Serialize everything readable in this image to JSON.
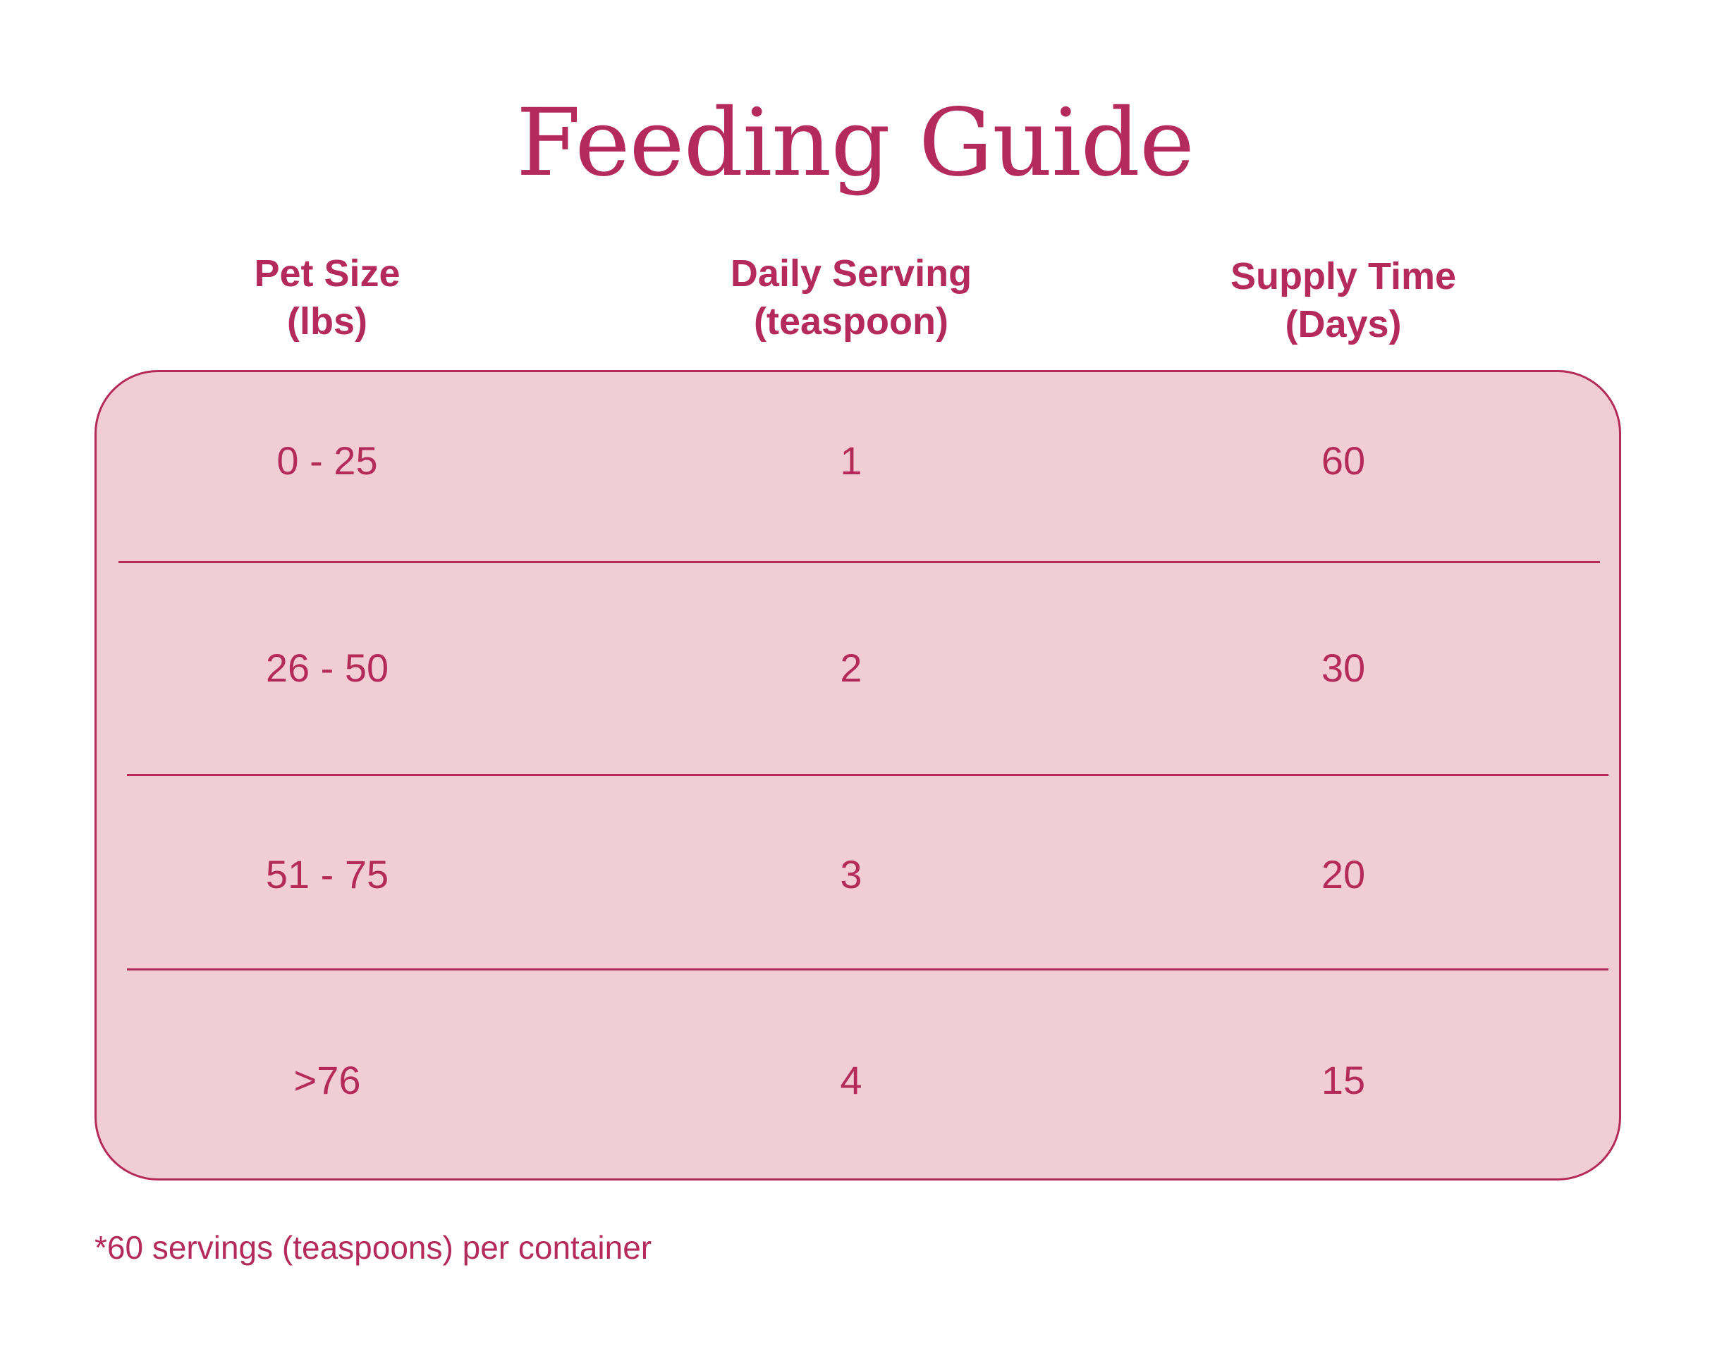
{
  "title": "Feeding Guide",
  "columns": [
    {
      "line1": "Pet Size",
      "line2": "(lbs)"
    },
    {
      "line1": "Daily Serving",
      "line2": "(teaspoon)"
    },
    {
      "line1": "Supply Time",
      "line2": "(Days)"
    }
  ],
  "rows": [
    {
      "pet_size": "0 - 25",
      "daily_serving": "1",
      "supply_time": "60"
    },
    {
      "pet_size": "26 - 50",
      "daily_serving": "2",
      "supply_time": "30"
    },
    {
      "pet_size": "51 - 75",
      "daily_serving": "3",
      "supply_time": "20"
    },
    {
      "pet_size": ">76",
      "daily_serving": "4",
      "supply_time": "15"
    }
  ],
  "footnote": "*60 servings (teaspoons) per container",
  "colors": {
    "accent": "#b42a5b",
    "table_fill": "#f1ced6",
    "background": "#ffffff"
  }
}
